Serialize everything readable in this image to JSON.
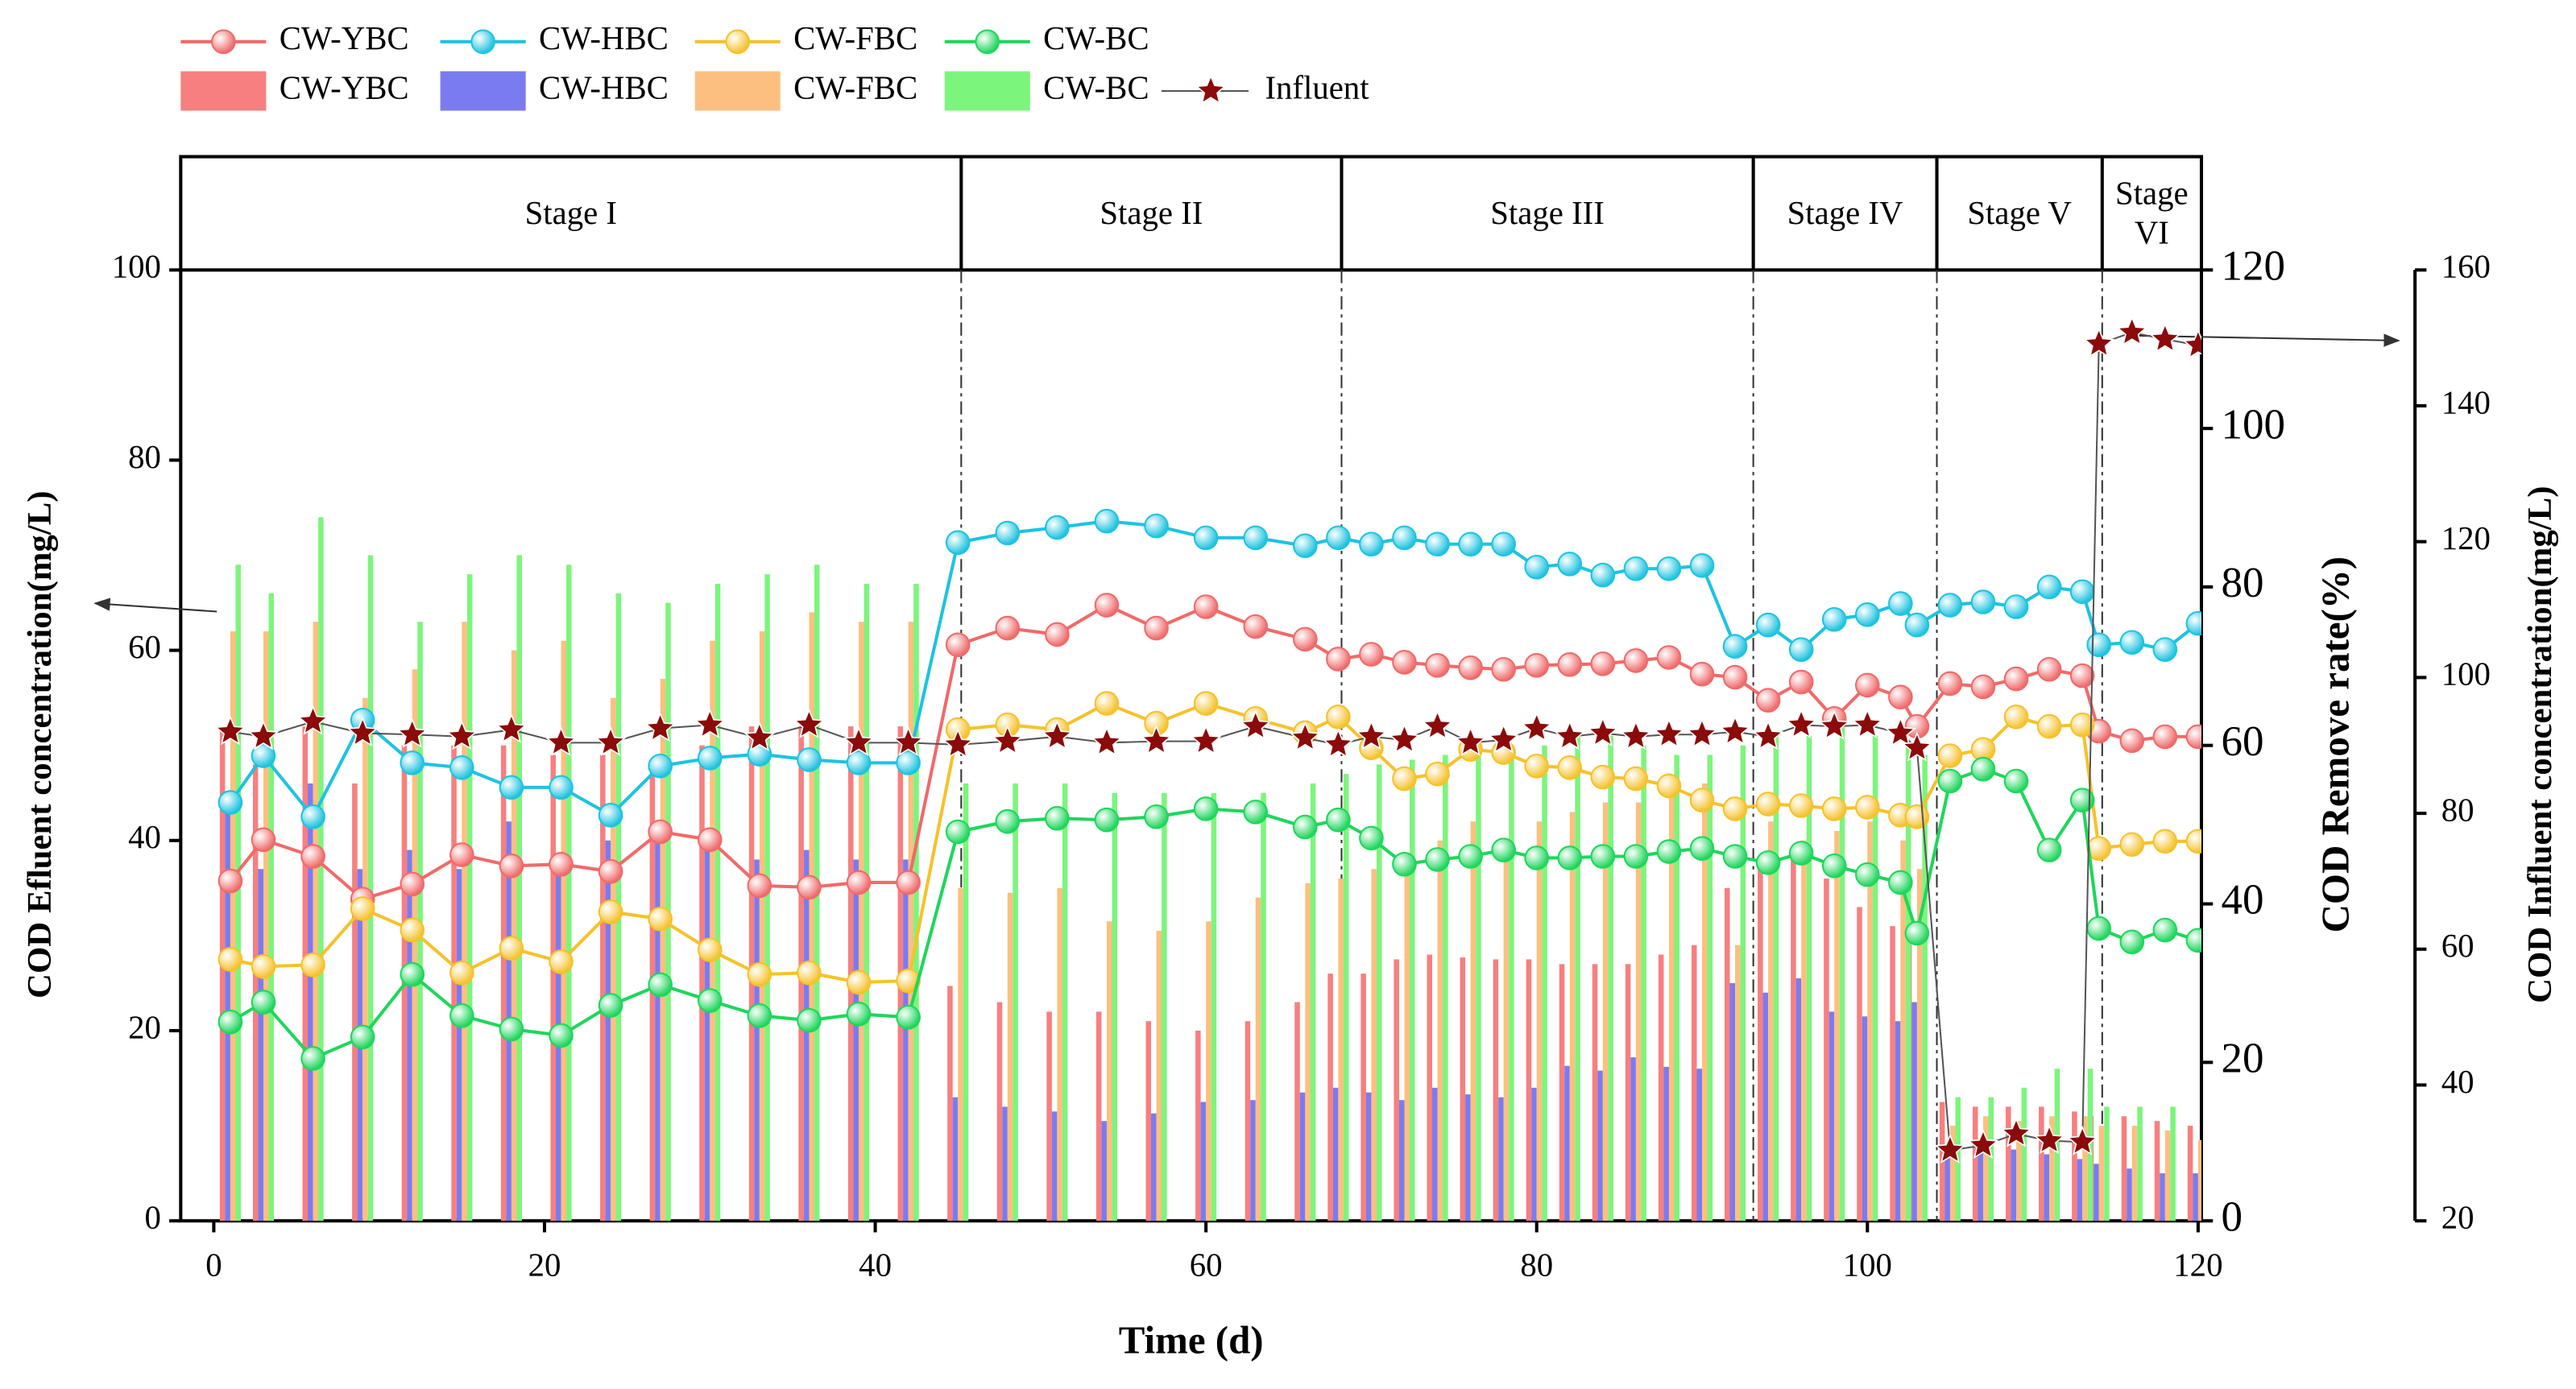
{
  "chart_data": {
    "type": "combo",
    "xlabel": "Time (d)",
    "ylabel": "COD Efluent concentration(mg/L)",
    "y2label": "COD Remove rate(%)",
    "y3label": "COD Influent concentration(mg/L)",
    "x": [
      1,
      3,
      6,
      9,
      12,
      15,
      18,
      21,
      24,
      27,
      30,
      33,
      36,
      39,
      42,
      45,
      48,
      51,
      54,
      57,
      60,
      63,
      66,
      68,
      70,
      72,
      74,
      76,
      78,
      80,
      82,
      84,
      86,
      88,
      90,
      92,
      94,
      96,
      98,
      100,
      102,
      103,
      105,
      107,
      109,
      111,
      113,
      114,
      116,
      118,
      120
    ],
    "xlim": [
      -2,
      120.2
    ],
    "xticks": [
      0,
      20,
      40,
      60,
      80,
      100,
      120
    ],
    "ylim": [
      0,
      100
    ],
    "yticks": [
      0,
      20,
      40,
      60,
      80,
      100
    ],
    "y2lim": [
      0,
      120
    ],
    "y2ticks": [
      0,
      20,
      40,
      60,
      80,
      100,
      120
    ],
    "y3lim": [
      20,
      160
    ],
    "y3ticks": [
      20,
      40,
      60,
      80,
      100,
      120,
      140,
      160
    ],
    "stages": [
      {
        "label": "Stage I",
        "end": 45.2
      },
      {
        "label": "Stage II",
        "end": 68.2
      },
      {
        "label": "Stage III",
        "end": 93.1
      },
      {
        "label": "Stage IV",
        "end": 104.2
      },
      {
        "label": "Stage V",
        "end": 114.2
      },
      {
        "label": "Stage VI"
      }
    ],
    "series": [
      {
        "name": "CW-YBC",
        "kind": "line",
        "axis": "y2",
        "color": "#f06a6a",
        "values": [
          42.9,
          48.1,
          46.0,
          40.6,
          42.5,
          46.2,
          44.8,
          45.0,
          44.1,
          49.1,
          48.1,
          42.3,
          42.1,
          42.7,
          42.7,
          72.7,
          74.8,
          74.0,
          77.7,
          74.8,
          77.5,
          75.0,
          73.4,
          70.9,
          71.5,
          70.5,
          70.1,
          69.8,
          69.6,
          70.1,
          70.2,
          70.3,
          70.7,
          71.1,
          69.0,
          68.6,
          65.7,
          68.0,
          63.4,
          67.6,
          66.1,
          62.4,
          67.8,
          67.4,
          68.4,
          69.6,
          68.8,
          61.8,
          60.6,
          61.1,
          61.1
        ]
      },
      {
        "name": "CW-HBC",
        "kind": "line",
        "axis": "y2",
        "color": "#1ec3e0",
        "values": [
          52.8,
          58.7,
          51.0,
          63.2,
          57.8,
          57.2,
          54.7,
          54.7,
          51.2,
          57.4,
          58.4,
          58.9,
          58.2,
          57.8,
          57.8,
          85.6,
          86.8,
          87.5,
          88.3,
          87.7,
          86.2,
          86.2,
          85.2,
          86.2,
          85.4,
          86.2,
          85.4,
          85.4,
          85.4,
          82.5,
          82.9,
          81.5,
          82.3,
          82.3,
          82.7,
          72.5,
          75.2,
          72.1,
          75.9,
          76.5,
          77.9,
          75.2,
          77.7,
          78.1,
          77.5,
          80.0,
          79.4,
          72.7,
          73.0,
          72.1,
          75.4
        ]
      },
      {
        "name": "CW-FBC",
        "kind": "line",
        "axis": "y2",
        "color": "#f5c22c",
        "values": [
          33.0,
          32.1,
          32.3,
          39.4,
          36.7,
          31.3,
          34.4,
          32.7,
          39.0,
          38.1,
          34.2,
          31.1,
          31.3,
          30.1,
          30.3,
          62.0,
          62.6,
          62.0,
          65.3,
          62.8,
          65.3,
          63.4,
          61.6,
          63.6,
          59.7,
          55.8,
          56.4,
          59.5,
          59.1,
          57.4,
          57.2,
          56.0,
          55.8,
          54.9,
          53.1,
          52.0,
          52.6,
          52.4,
          52.0,
          52.2,
          51.2,
          51.0,
          58.7,
          59.5,
          63.6,
          62.4,
          62.6,
          47.0,
          47.5,
          47.9,
          47.9
        ]
      },
      {
        "name": "CW-BC",
        "kind": "line",
        "axis": "y2",
        "color": "#1fd65c",
        "values": [
          25.1,
          27.6,
          20.5,
          23.2,
          31.1,
          25.9,
          24.2,
          23.4,
          27.2,
          29.8,
          27.8,
          25.9,
          25.3,
          26.1,
          25.7,
          49.1,
          50.4,
          50.8,
          50.6,
          51.0,
          52.0,
          51.6,
          49.7,
          50.6,
          48.3,
          45.0,
          45.6,
          46.0,
          46.8,
          45.8,
          45.8,
          46.0,
          46.0,
          46.6,
          47.0,
          46.0,
          45.2,
          46.4,
          44.8,
          43.7,
          42.7,
          36.3,
          55.5,
          57.0,
          55.5,
          46.8,
          53.1,
          36.9,
          35.2,
          36.7,
          35.4
        ]
      },
      {
        "name": "CW-YBC",
        "kind": "bar",
        "axis": "y",
        "color": "#f77f7f",
        "values": [
          52,
          48,
          52,
          46,
          50,
          50,
          50,
          49,
          49,
          48,
          50,
          52,
          52,
          52,
          52,
          24.7,
          23,
          22,
          22,
          21,
          20,
          21,
          23,
          26,
          26,
          27.5,
          28,
          27.7,
          27.5,
          27.5,
          27,
          27,
          27,
          28,
          29,
          35,
          37,
          38,
          36,
          33,
          31,
          32,
          12.5,
          12,
          12,
          12,
          11.5,
          11,
          11,
          10.5,
          10
        ]
      },
      {
        "name": "CW-HBC",
        "kind": "bar",
        "axis": "y",
        "color": "#7b7bf0",
        "values": [
          44,
          37,
          46,
          37,
          39,
          37,
          42,
          37,
          40,
          40,
          39,
          38,
          39,
          38,
          38,
          13,
          12,
          11.5,
          10.5,
          11.3,
          12.5,
          12.7,
          13.5,
          14,
          13.5,
          12.7,
          14,
          13.3,
          13,
          14,
          16.3,
          15.8,
          17.2,
          16.2,
          16,
          25,
          24,
          25.5,
          22,
          21.5,
          21,
          23,
          8,
          8,
          7.5,
          7,
          6.5,
          6,
          5.5,
          5,
          5
        ]
      },
      {
        "name": "CW-FBC",
        "kind": "bar",
        "axis": "y",
        "color": "#fdbf80",
        "values": [
          62,
          62,
          63,
          55,
          58,
          63,
          60,
          61,
          55,
          57,
          61,
          62,
          64,
          63,
          63,
          35,
          34.5,
          35,
          31.5,
          30.5,
          31.5,
          34,
          35.5,
          36,
          37,
          38,
          40,
          42,
          40,
          42,
          43,
          44,
          44,
          45,
          46,
          29,
          42,
          40,
          41,
          42,
          40,
          37,
          10,
          11,
          10.5,
          11,
          11,
          10,
          10,
          9.5,
          8.5
        ]
      },
      {
        "name": "CW-BC",
        "kind": "bar",
        "axis": "y",
        "color": "#7cf57c",
        "values": [
          69,
          66,
          74,
          70,
          63,
          68,
          70,
          69,
          66,
          65,
          67,
          68,
          69,
          67,
          67,
          46,
          46,
          46,
          45,
          45,
          45,
          45,
          46,
          47,
          48,
          48.5,
          49,
          50,
          50,
          50,
          51,
          51,
          50,
          49,
          49,
          50,
          51,
          51,
          52,
          51,
          50,
          49,
          13,
          13,
          14,
          16,
          16,
          12,
          12,
          12,
          11.5
        ]
      },
      {
        "name": "Influent",
        "kind": "star",
        "axis": "y3",
        "color": "#8b0a0a",
        "values": [
          92.0,
          91.3,
          93.5,
          91.8,
          91.6,
          91.3,
          92.3,
          90.4,
          90.4,
          92.5,
          93.0,
          91.1,
          93.0,
          90.4,
          90.4,
          90.1,
          90.6,
          91.3,
          90.4,
          90.6,
          90.6,
          92.8,
          91.1,
          90.1,
          91.3,
          90.8,
          92.8,
          90.4,
          90.8,
          92.5,
          91.3,
          91.8,
          91.3,
          91.6,
          91.6,
          92.0,
          91.3,
          93.0,
          92.8,
          93.0,
          91.8,
          89.6,
          30.4,
          31.1,
          32.8,
          31.8,
          31.6,
          149.1,
          150.8,
          149.8,
          148.9
        ]
      }
    ]
  }
}
